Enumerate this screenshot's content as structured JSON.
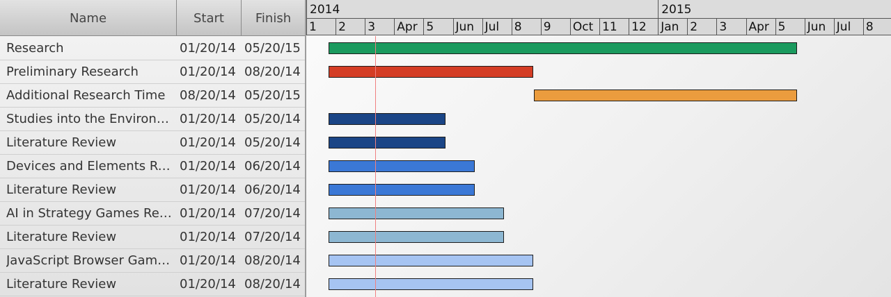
{
  "columns": {
    "name": "Name",
    "start": "Start",
    "finish": "Finish"
  },
  "timeline": {
    "years": [
      "2014",
      "2015"
    ],
    "months": [
      "1",
      "2",
      "3",
      "Apr",
      "5",
      "Jun",
      "Jul",
      "8",
      "9",
      "Oct",
      "11",
      "12",
      "Jan",
      "2",
      "3",
      "Apr",
      "5",
      "Jun",
      "Jul",
      "8"
    ]
  },
  "tasks": [
    {
      "name": "Research",
      "start": "01/20/14",
      "finish": "05/20/15",
      "color": "#1a9a5e"
    },
    {
      "name": "Preliminary Research",
      "start": "01/20/14",
      "finish": "08/20/14",
      "color": "#d43d25"
    },
    {
      "name": "Additional Research Time",
      "start": "08/20/14",
      "finish": "05/20/15",
      "color": "#eb9c3e"
    },
    {
      "name": "Studies into the Environments",
      "start": "01/20/14",
      "finish": "05/20/14",
      "color": "#1b4586"
    },
    {
      "name": "Literature Review",
      "start": "01/20/14",
      "finish": "05/20/14",
      "color": "#1b4586"
    },
    {
      "name": "Devices and Elements Research",
      "start": "01/20/14",
      "finish": "06/20/14",
      "color": "#3b78d6"
    },
    {
      "name": "Literature Review",
      "start": "01/20/14",
      "finish": "06/20/14",
      "color": "#3b78d6"
    },
    {
      "name": "AI in Strategy Games Research",
      "start": "01/20/14",
      "finish": "07/20/14",
      "color": "#8db7d2"
    },
    {
      "name": "Literature Review",
      "start": "01/20/14",
      "finish": "07/20/14",
      "color": "#8db7d2"
    },
    {
      "name": "JavaScript Browser Game Research",
      "start": "01/20/14",
      "finish": "08/20/14",
      "color": "#a6c4f2"
    },
    {
      "name": "Literature Review",
      "start": "01/20/14",
      "finish": "08/20/14",
      "color": "#a6c4f2"
    }
  ],
  "today_marker": {
    "date": "02/25/14",
    "color": "#f08080"
  }
}
